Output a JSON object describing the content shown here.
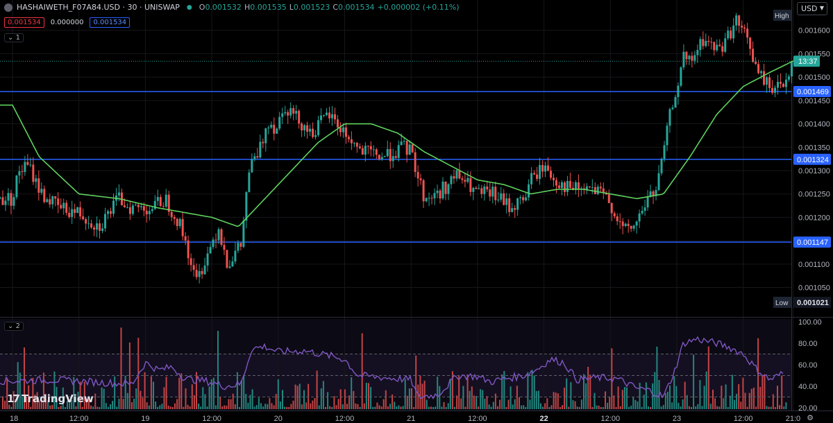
{
  "header": {
    "symbol": "HASHAIWETH_F07A84.USD · 30 · UNISWAP",
    "ohlc": [
      {
        "k": "O",
        "v": "0.001532"
      },
      {
        "k": "H",
        "v": "0.001535"
      },
      {
        "k": "L",
        "v": "0.001523"
      },
      {
        "k": "C",
        "v": "0.001534"
      },
      {
        "k": "",
        "v": "+0.000002 (+0.11%)"
      }
    ],
    "bid": "0.001534",
    "spread": "0.000000",
    "ask": "0.001534",
    "pane1_label": "1",
    "pane2_label": "2",
    "currency": "USD",
    "logo": "TradingView",
    "logo_mark": "17"
  },
  "chart_data": {
    "type": "candlestick",
    "price_axis": {
      "ylim": [
        0.00099,
        0.00165
      ],
      "ticks": [
        "0.001600",
        "0.001550",
        "0.001500",
        "0.001450",
        "0.001400",
        "0.001350",
        "0.001300",
        "0.001250",
        "0.001200",
        "0.001150",
        "0.001100",
        "0.001050"
      ],
      "last_price_label": "13:37",
      "last_price": 0.001534,
      "high_label": "High",
      "low_label": "Low",
      "low_value": "0.001021"
    },
    "horizontal_lines": [
      {
        "value": 0.001469,
        "label": "0.001469"
      },
      {
        "value": 0.001324,
        "label": "0.001324"
      },
      {
        "value": 0.001147,
        "label": "0.001147"
      }
    ],
    "x_labels": [
      {
        "label": "18",
        "pos": 0.0
      },
      {
        "label": "12:00",
        "pos": 0.5
      },
      {
        "label": "19",
        "pos": 1.0
      },
      {
        "label": "12:00",
        "pos": 1.5
      },
      {
        "label": "20",
        "pos": 2.0
      },
      {
        "label": "12:00",
        "pos": 2.5
      },
      {
        "label": "21",
        "pos": 3.0
      },
      {
        "label": "12:00",
        "pos": 3.5
      },
      {
        "label": "22",
        "pos": 4.0,
        "bold": true
      },
      {
        "label": "12:00",
        "pos": 4.5
      },
      {
        "label": "23",
        "pos": 5.0
      },
      {
        "label": "12:00",
        "pos": 5.5
      },
      {
        "label": "21:0",
        "pos": 5.875
      }
    ],
    "price_path": [
      [
        0,
        0.00124
      ],
      [
        0.05,
        0.0013
      ],
      [
        0.12,
        0.00131
      ],
      [
        0.22,
        0.00125
      ],
      [
        0.35,
        0.00122
      ],
      [
        0.5,
        0.00121
      ],
      [
        0.65,
        0.00118
      ],
      [
        0.8,
        0.00124
      ],
      [
        0.9,
        0.00122
      ],
      [
        1.05,
        0.00122
      ],
      [
        1.15,
        0.00124
      ],
      [
        1.25,
        0.00119
      ],
      [
        1.3,
        0.00115
      ],
      [
        1.38,
        0.00106
      ],
      [
        1.45,
        0.00111
      ],
      [
        1.55,
        0.00118
      ],
      [
        1.62,
        0.0011
      ],
      [
        1.72,
        0.00114
      ],
      [
        1.78,
        0.0013
      ],
      [
        1.87,
        0.00135
      ],
      [
        1.92,
        0.00141
      ],
      [
        1.98,
        0.00139
      ],
      [
        2.05,
        0.00144
      ],
      [
        2.15,
        0.00141
      ],
      [
        2.25,
        0.00138
      ],
      [
        2.38,
        0.00142
      ],
      [
        2.5,
        0.00138
      ],
      [
        2.62,
        0.00134
      ],
      [
        2.8,
        0.00133
      ],
      [
        2.95,
        0.00135
      ],
      [
        3.0,
        0.00134
      ],
      [
        3.1,
        0.00124
      ],
      [
        3.2,
        0.00125
      ],
      [
        3.35,
        0.00129
      ],
      [
        3.5,
        0.00125
      ],
      [
        3.62,
        0.00125
      ],
      [
        3.75,
        0.00122
      ],
      [
        3.85,
        0.00124
      ],
      [
        3.9,
        0.00128
      ],
      [
        4.0,
        0.00131
      ],
      [
        4.08,
        0.00128
      ],
      [
        4.2,
        0.00126
      ],
      [
        4.35,
        0.00126
      ],
      [
        4.48,
        0.00124
      ],
      [
        4.6,
        0.00117
      ],
      [
        4.68,
        0.00118
      ],
      [
        4.78,
        0.00124
      ],
      [
        4.85,
        0.00126
      ],
      [
        4.95,
        0.00142
      ],
      [
        5.05,
        0.00154
      ],
      [
        5.1,
        0.00153
      ],
      [
        5.2,
        0.00158
      ],
      [
        5.3,
        0.00156
      ],
      [
        5.35,
        0.00157
      ],
      [
        5.45,
        0.00162
      ],
      [
        5.55,
        0.00157
      ],
      [
        5.6,
        0.00151
      ],
      [
        5.7,
        0.00148
      ],
      [
        5.8,
        0.00148
      ],
      [
        5.88,
        0.001534
      ]
    ],
    "ma_path": [
      [
        0,
        0.00144
      ],
      [
        0.2,
        0.00133
      ],
      [
        0.5,
        0.00125
      ],
      [
        0.8,
        0.00124
      ],
      [
        1.1,
        0.00122
      ],
      [
        1.3,
        0.00121
      ],
      [
        1.5,
        0.0012
      ],
      [
        1.7,
        0.00118
      ],
      [
        1.9,
        0.00124
      ],
      [
        2.1,
        0.0013
      ],
      [
        2.3,
        0.00136
      ],
      [
        2.5,
        0.0014
      ],
      [
        2.7,
        0.0014
      ],
      [
        2.9,
        0.00138
      ],
      [
        3.1,
        0.00134
      ],
      [
        3.3,
        0.00131
      ],
      [
        3.5,
        0.00128
      ],
      [
        3.7,
        0.00127
      ],
      [
        3.9,
        0.00125
      ],
      [
        4.1,
        0.00126
      ],
      [
        4.3,
        0.00126
      ],
      [
        4.5,
        0.00125
      ],
      [
        4.7,
        0.00124
      ],
      [
        4.9,
        0.00125
      ],
      [
        5.1,
        0.00133
      ],
      [
        5.3,
        0.00142
      ],
      [
        5.5,
        0.00148
      ],
      [
        5.7,
        0.00151
      ],
      [
        5.88,
        0.001535
      ]
    ],
    "rsi_pane": {
      "ylim": [
        20,
        100
      ],
      "ticks": [
        "100.00",
        "80.00",
        "60.00",
        "40.00",
        "20.00"
      ],
      "bands": [
        70,
        50,
        30
      ],
      "rsi_path": [
        [
          0,
          45
        ],
        [
          0.3,
          46
        ],
        [
          0.6,
          44
        ],
        [
          0.9,
          42
        ],
        [
          1.0,
          62
        ],
        [
          1.1,
          55
        ],
        [
          1.2,
          58
        ],
        [
          1.3,
          47
        ],
        [
          1.45,
          45
        ],
        [
          1.6,
          40
        ],
        [
          1.72,
          42
        ],
        [
          1.8,
          75
        ],
        [
          1.9,
          77
        ],
        [
          2.0,
          72
        ],
        [
          2.2,
          73
        ],
        [
          2.4,
          68
        ],
        [
          2.5,
          65
        ],
        [
          2.6,
          50
        ],
        [
          2.8,
          48
        ],
        [
          3.0,
          46
        ],
        [
          3.05,
          30
        ],
        [
          3.2,
          32
        ],
        [
          3.35,
          50
        ],
        [
          3.5,
          49
        ],
        [
          3.6,
          44
        ],
        [
          3.7,
          47
        ],
        [
          3.85,
          50
        ],
        [
          3.95,
          56
        ],
        [
          4.05,
          65
        ],
        [
          4.15,
          62
        ],
        [
          4.25,
          46
        ],
        [
          4.4,
          48
        ],
        [
          4.55,
          47
        ],
        [
          4.7,
          38
        ],
        [
          4.8,
          36
        ],
        [
          4.9,
          30
        ],
        [
          4.98,
          53
        ],
        [
          5.05,
          80
        ],
        [
          5.15,
          84
        ],
        [
          5.3,
          80
        ],
        [
          5.4,
          76
        ],
        [
          5.5,
          70
        ],
        [
          5.6,
          56
        ],
        [
          5.7,
          46
        ],
        [
          5.8,
          52
        ],
        [
          5.88,
          55
        ]
      ],
      "volume_seed": 7
    }
  }
}
